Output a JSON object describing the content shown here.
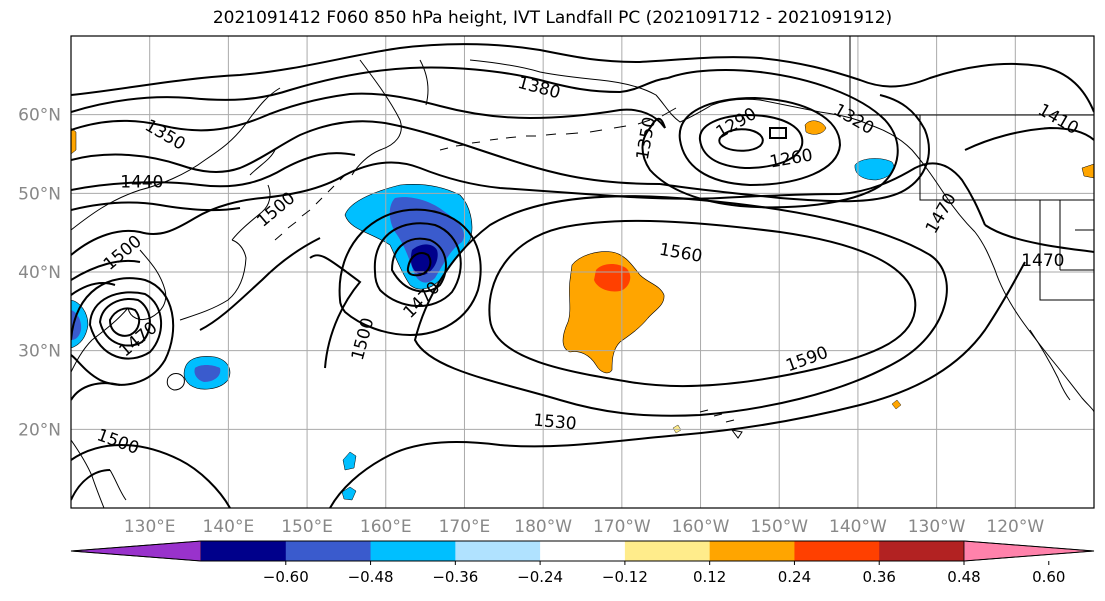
{
  "title": "2021091412 F060 850 hPa height, IVT Landfall PC (2021091712 - 2021091912)",
  "map": {
    "lon_range": [
      120,
      250
    ],
    "lat_range": [
      10,
      70
    ],
    "lon_ticks": [
      {
        "lon": 130,
        "label": "130°E"
      },
      {
        "lon": 140,
        "label": "140°E"
      },
      {
        "lon": 150,
        "label": "150°E"
      },
      {
        "lon": 160,
        "label": "160°E"
      },
      {
        "lon": 170,
        "label": "170°E"
      },
      {
        "lon": 180,
        "label": "180°W"
      },
      {
        "lon": 190,
        "label": "170°W"
      },
      {
        "lon": 200,
        "label": "160°W"
      },
      {
        "lon": 210,
        "label": "150°W"
      },
      {
        "lon": 220,
        "label": "140°W"
      },
      {
        "lon": 230,
        "label": "130°W"
      },
      {
        "lon": 240,
        "label": "120°W"
      }
    ],
    "lat_ticks": [
      {
        "lat": 20,
        "label": "20°N"
      },
      {
        "lat": 30,
        "label": "30°N"
      },
      {
        "lat": 40,
        "label": "40°N"
      },
      {
        "lat": 50,
        "label": "50°N"
      },
      {
        "lat": 60,
        "label": "60°N"
      }
    ],
    "contour_labels": [
      {
        "text": "1380",
        "lon": 179.5,
        "lat": 63.5,
        "rot": 15
      },
      {
        "text": "1350",
        "lon": 132.0,
        "lat": 57.5,
        "rot": 30
      },
      {
        "text": "1440",
        "lon": 129.0,
        "lat": 51.5,
        "rot": 0
      },
      {
        "text": "1500",
        "lon": 146.0,
        "lat": 48.0,
        "rot": -40
      },
      {
        "text": "1500",
        "lon": 126.5,
        "lat": 42.5,
        "rot": -40
      },
      {
        "text": "1470",
        "lon": 128.5,
        "lat": 31.5,
        "rot": -40
      },
      {
        "text": "1470",
        "lon": 164.5,
        "lat": 36.5,
        "rot": -45
      },
      {
        "text": "1500",
        "lon": 157.0,
        "lat": 31.5,
        "rot": -75
      },
      {
        "text": "1350",
        "lon": 193.0,
        "lat": 57.0,
        "rot": -80
      },
      {
        "text": "1290",
        "lon": 204.5,
        "lat": 59.0,
        "rot": -30
      },
      {
        "text": "1320",
        "lon": 219.5,
        "lat": 59.5,
        "rot": 30
      },
      {
        "text": "1260",
        "lon": 211.5,
        "lat": 54.5,
        "rot": -10
      },
      {
        "text": "1410",
        "lon": 245.5,
        "lat": 59.5,
        "rot": 30
      },
      {
        "text": "1470",
        "lon": 230.5,
        "lat": 47.5,
        "rot": -60
      },
      {
        "text": "1470",
        "lon": 243.5,
        "lat": 41.5,
        "rot": 0
      },
      {
        "text": "1560",
        "lon": 197.5,
        "lat": 42.5,
        "rot": 10
      },
      {
        "text": "1590",
        "lon": 213.5,
        "lat": 29.0,
        "rot": -20
      },
      {
        "text": "1530",
        "lon": 181.5,
        "lat": 21.0,
        "rot": 5
      },
      {
        "text": "1500",
        "lon": 126.0,
        "lat": 18.5,
        "rot": 20
      }
    ]
  },
  "colorbar": {
    "colors": [
      "#9932cc",
      "#00008b",
      "#3a5bcd",
      "#00bfff",
      "#b0e2ff",
      "#ffffff",
      "#ffec8b",
      "#ffa500",
      "#ff4000",
      "#b22222",
      "#ff82ab"
    ],
    "tick_labels": [
      "−0.60",
      "−0.48",
      "−0.36",
      "−0.24",
      "−0.12",
      "0.12",
      "0.24",
      "0.36",
      "0.48",
      "0.60"
    ]
  }
}
